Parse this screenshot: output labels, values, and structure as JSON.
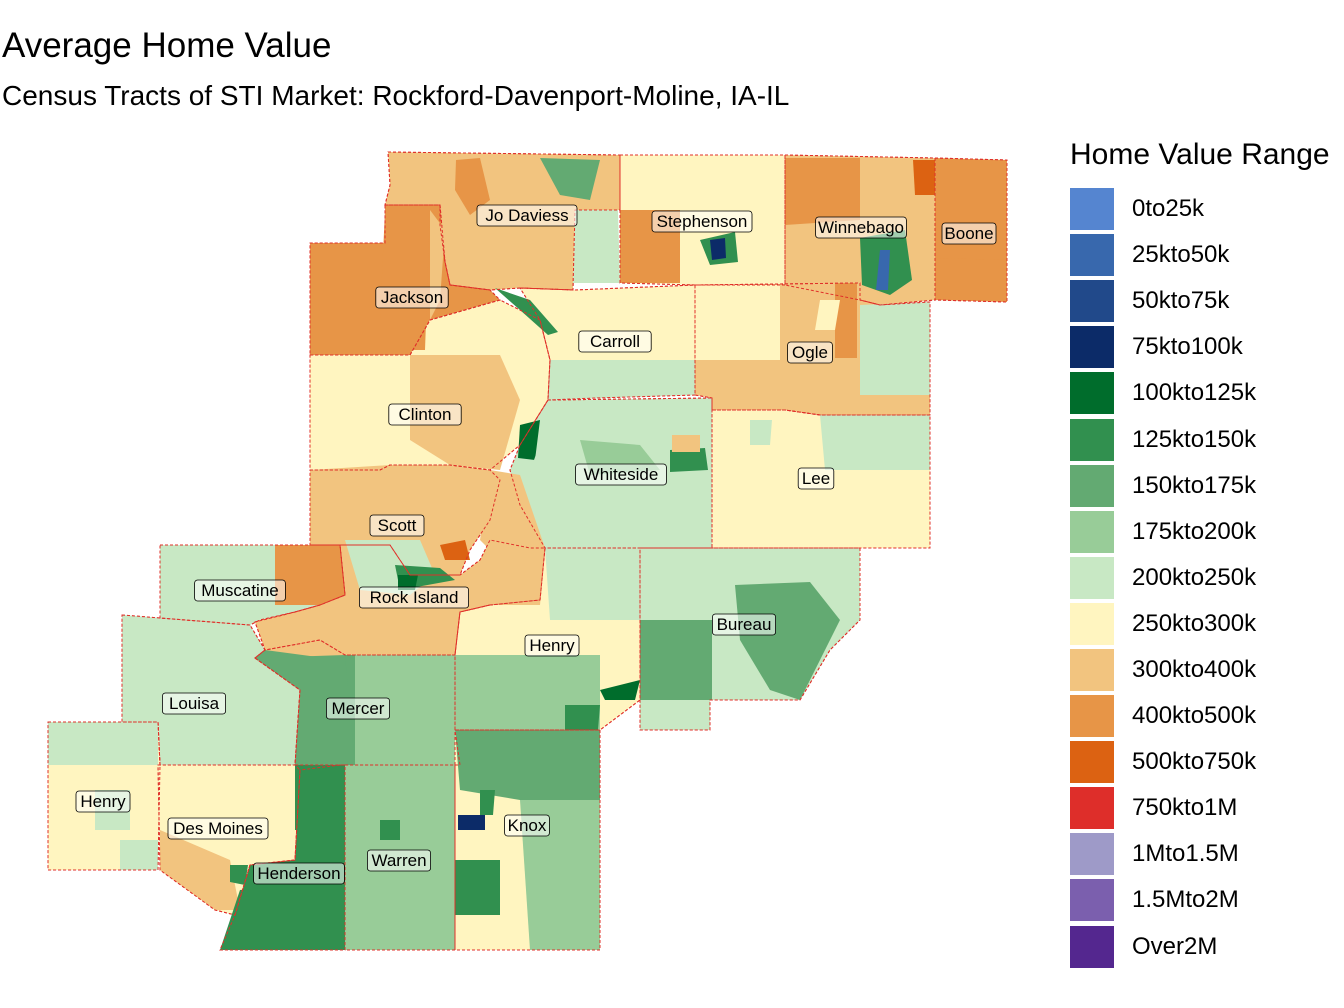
{
  "title": "Average Home Value",
  "subtitle": "Census Tracts of STI Market: Rockford-Davenport-Moline, IA-IL",
  "legend": {
    "title": "Home Value Range",
    "items": [
      {
        "label": "0to25k",
        "color": "#5585d0"
      },
      {
        "label": "25kto50k",
        "color": "#3868ad"
      },
      {
        "label": "50kto75k",
        "color": "#21498a"
      },
      {
        "label": "75kto100k",
        "color": "#0c2b68"
      },
      {
        "label": "100kto125k",
        "color": "#006d2c"
      },
      {
        "label": "125kto150k",
        "color": "#31904f"
      },
      {
        "label": "150kto175k",
        "color": "#63aa72"
      },
      {
        "label": "175kto200k",
        "color": "#98cc98"
      },
      {
        "label": "200kto250k",
        "color": "#c8e8c4"
      },
      {
        "label": "250kto300k",
        "color": "#fff5c0"
      },
      {
        "label": "300kto400k",
        "color": "#f2c47f"
      },
      {
        "label": "400kto500k",
        "color": "#e79547"
      },
      {
        "label": "500kto750k",
        "color": "#dc6212"
      },
      {
        "label": "750kto1M",
        "color": "#de2e2a"
      },
      {
        "label": "1Mto1.5M",
        "color": "#9e9ac8"
      },
      {
        "label": "1.5Mto2M",
        "color": "#7b5fae"
      },
      {
        "label": "Over2M",
        "color": "#54278f"
      }
    ]
  },
  "counties": [
    {
      "name": "Jo Daviess",
      "value_class": "300kto400k"
    },
    {
      "name": "Stephenson",
      "value_class": "250kto300k"
    },
    {
      "name": "Winnebago",
      "value_class": "300kto400k"
    },
    {
      "name": "Boone",
      "value_class": "400kto500k"
    },
    {
      "name": "Jackson",
      "value_class": "400kto500k"
    },
    {
      "name": "Carroll",
      "value_class": "250kto300k"
    },
    {
      "name": "Ogle",
      "value_class": "300kto400k"
    },
    {
      "name": "Clinton",
      "value_class": "250kto300k"
    },
    {
      "name": "Whiteside",
      "value_class": "200kto250k"
    },
    {
      "name": "Lee",
      "value_class": "250kto300k"
    },
    {
      "name": "Scott",
      "value_class": "300kto400k"
    },
    {
      "name": "Muscatine",
      "value_class": "200kto250k"
    },
    {
      "name": "Rock Island",
      "value_class": "300kto400k"
    },
    {
      "name": "Henry",
      "value_class": "250kto300k"
    },
    {
      "name": "Bureau",
      "value_class": "200kto250k"
    },
    {
      "name": "Louisa",
      "value_class": "200kto250k"
    },
    {
      "name": "Mercer",
      "value_class": "150kto175k"
    },
    {
      "name": "Henry",
      "value_class": "250kto300k"
    },
    {
      "name": "Des Moines",
      "value_class": "250kto300k"
    },
    {
      "name": "Warren",
      "value_class": "175kto200k"
    },
    {
      "name": "Knox",
      "value_class": "250kto300k"
    },
    {
      "name": "Henderson",
      "value_class": "125kto150k"
    }
  ]
}
